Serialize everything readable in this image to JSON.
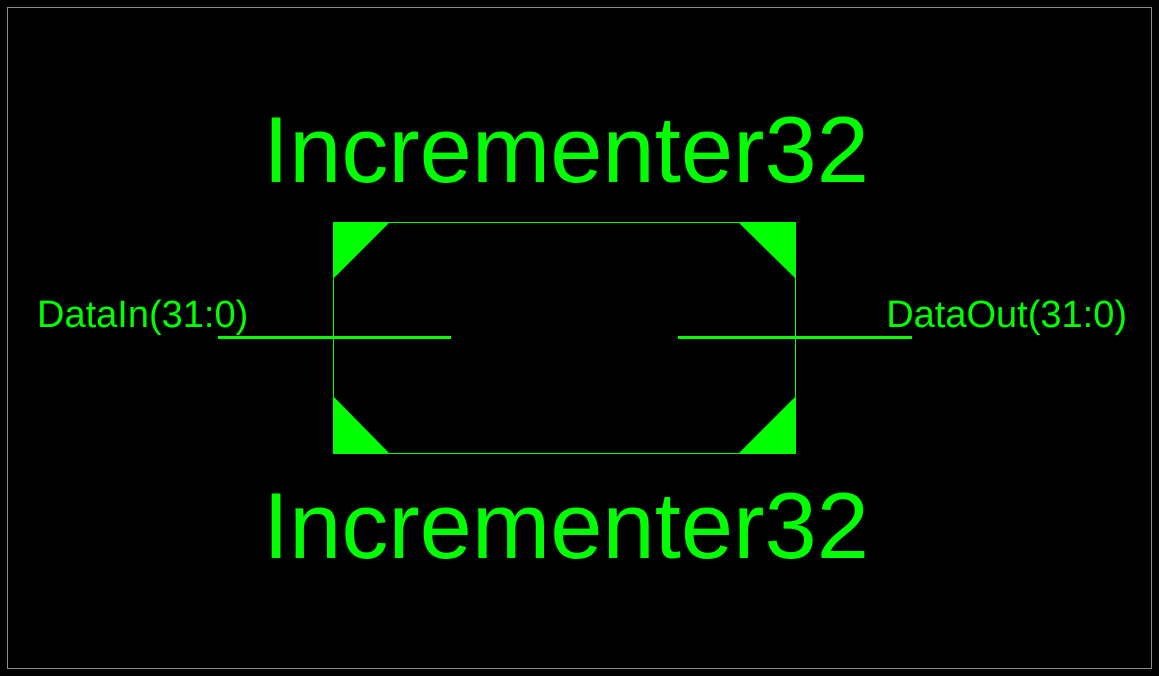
{
  "symbol": {
    "name_top": "Incrementer32",
    "name_bottom": "Incrementer32",
    "color": "#00ff00",
    "background": "#000000",
    "frame_color": "#8a8a8a"
  },
  "ports": {
    "input_label": "DataIn(31:0)",
    "output_label": "DataOut(31:0)"
  }
}
